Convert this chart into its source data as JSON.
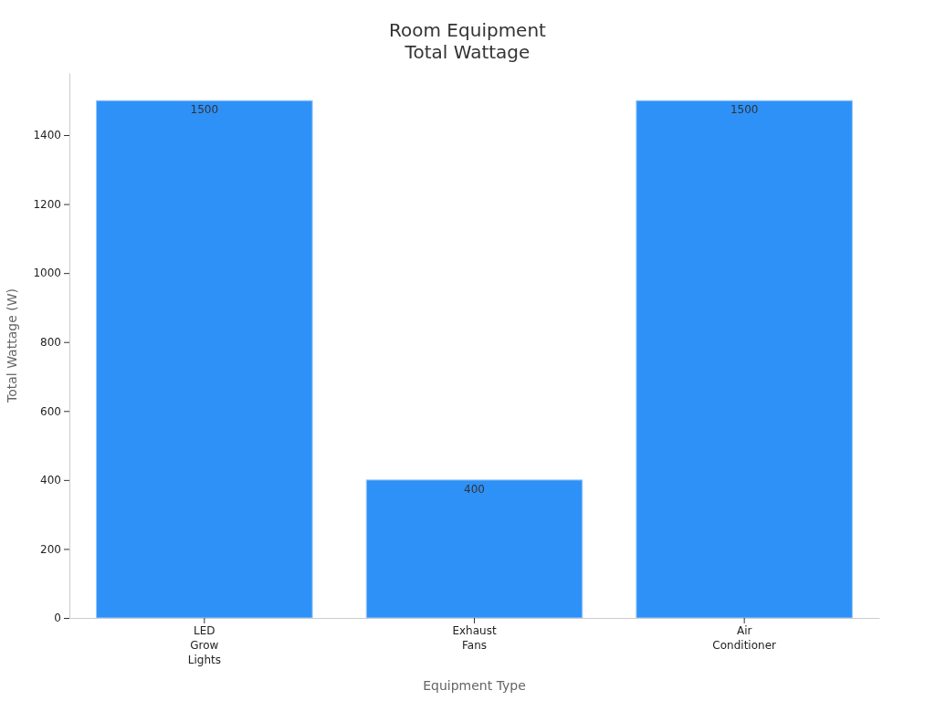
{
  "chart_data": {
    "type": "bar",
    "title": "Room Equipment\nTotal Wattage",
    "xlabel": "Equipment Type",
    "ylabel": "Total Wattage (W)",
    "categories": [
      "LED Grow Lights",
      "Exhaust Fans",
      "Air Conditioner"
    ],
    "values": [
      1500,
      400,
      1500
    ],
    "color": "#2e91f8",
    "ylim": [
      0,
      1580
    ],
    "yticks": [
      0,
      200,
      400,
      600,
      800,
      1000,
      1200,
      1400
    ],
    "grid": false,
    "data_labels": true
  }
}
